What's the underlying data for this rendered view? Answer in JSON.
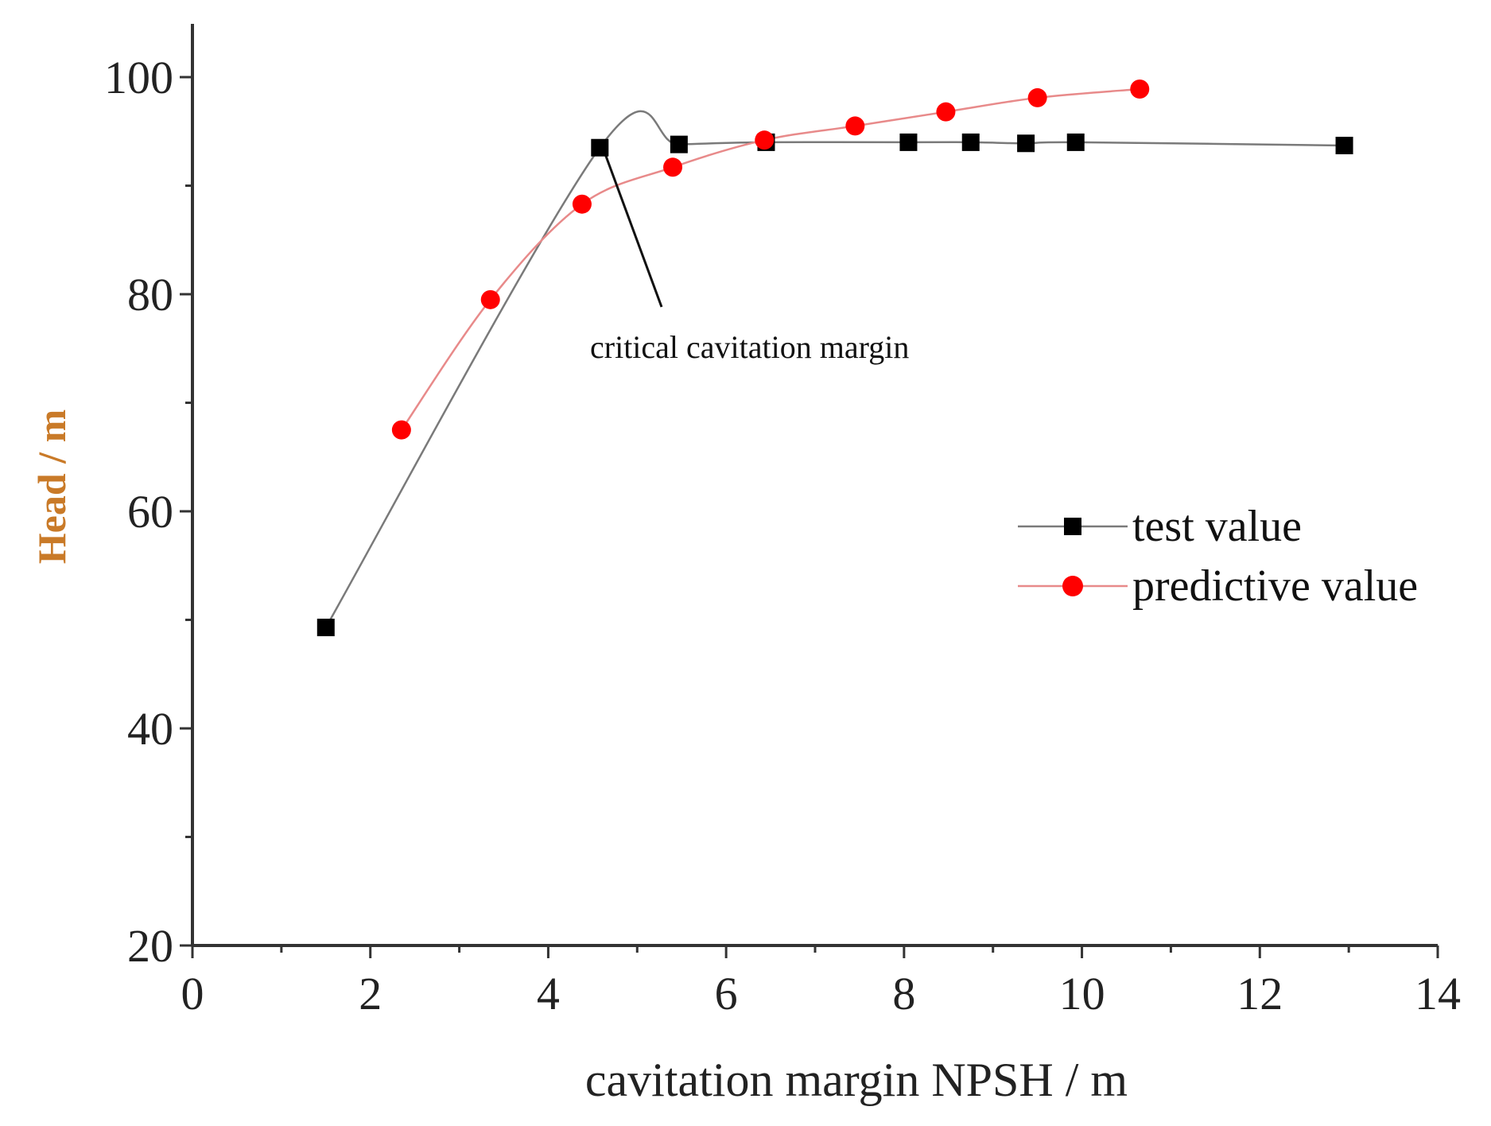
{
  "chart_data": {
    "type": "line",
    "xlabel": "cavitation margin NPSH / m",
    "ylabel": "Head / m",
    "xlim": [
      0,
      14
    ],
    "ylim": [
      20,
      105
    ],
    "x_ticks": [
      0,
      2,
      4,
      6,
      8,
      10,
      12,
      14
    ],
    "y_ticks": [
      20,
      40,
      60,
      80,
      100
    ],
    "grid": false,
    "legend_position": "right",
    "series": [
      {
        "name": "test value",
        "marker": "square",
        "color": "#000000",
        "line_color": "#7a7a7a",
        "points": [
          [
            1.5,
            49.3
          ],
          [
            4.58,
            93.5
          ],
          [
            5.47,
            93.8
          ],
          [
            6.45,
            94.0
          ],
          [
            8.05,
            94.0
          ],
          [
            8.75,
            94.0
          ],
          [
            9.37,
            93.9
          ],
          [
            9.93,
            94.0
          ],
          [
            12.95,
            93.7
          ]
        ]
      },
      {
        "name": "predictive value",
        "marker": "circle",
        "color": "#ff0000",
        "line_color": "#e88a8a",
        "points": [
          [
            2.35,
            67.5
          ],
          [
            3.35,
            79.5
          ],
          [
            4.38,
            88.3
          ],
          [
            5.4,
            91.7
          ],
          [
            6.43,
            94.2
          ],
          [
            7.45,
            95.5
          ],
          [
            8.47,
            96.8
          ],
          [
            9.5,
            98.1
          ],
          [
            10.65,
            98.9
          ]
        ]
      }
    ],
    "annotation": {
      "text": "critical cavitation margin",
      "point_x": 4.58,
      "point_y": 93.5
    }
  }
}
